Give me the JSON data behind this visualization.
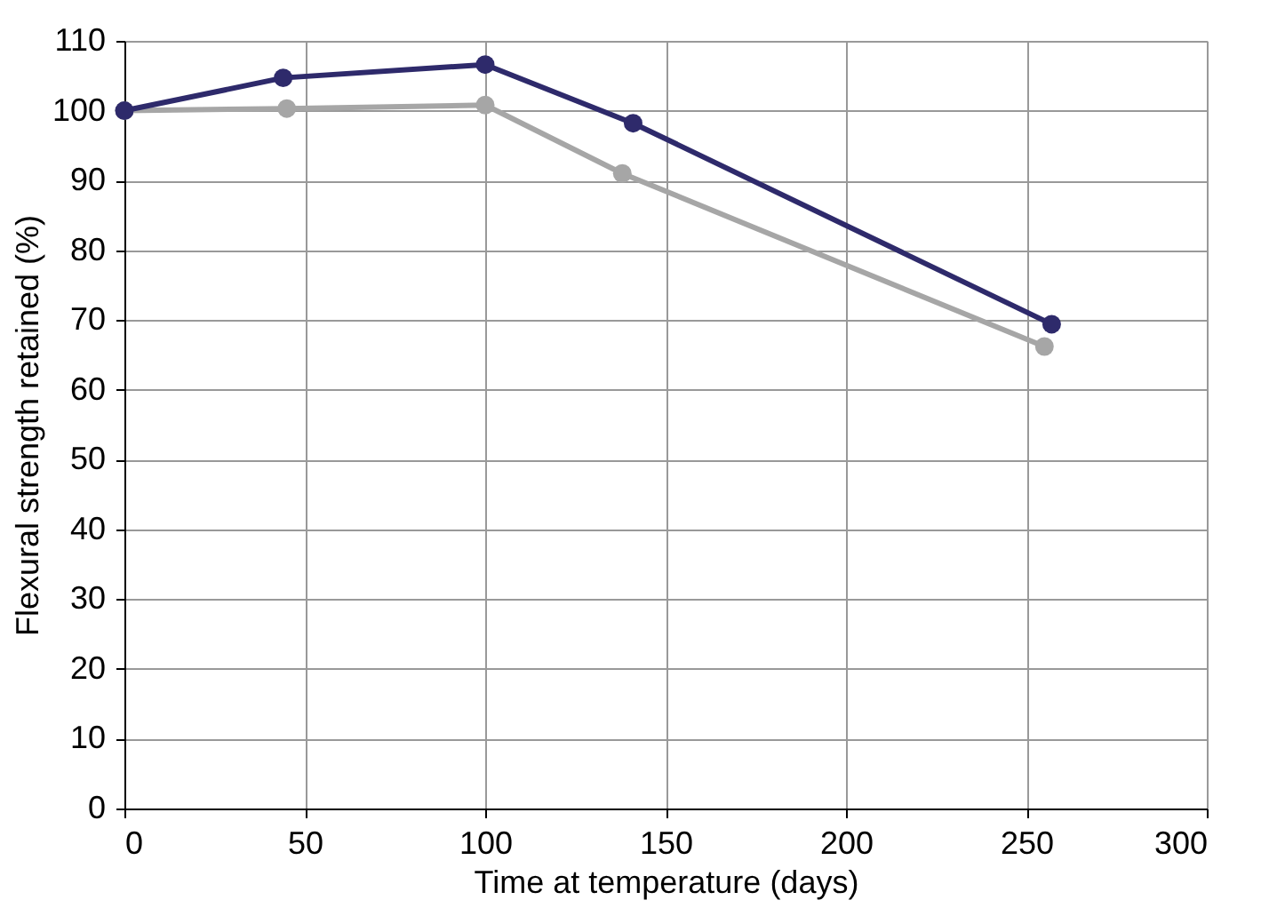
{
  "chart_data": {
    "type": "line",
    "xlabel": "Time at temperature (days)",
    "ylabel": "Flexural strength retained (%)",
    "xlim": [
      0,
      300
    ],
    "xticks": [
      0,
      50,
      100,
      150,
      200,
      250,
      300
    ],
    "ylim": [
      0,
      110
    ],
    "yticks": [
      0,
      10,
      20,
      30,
      40,
      50,
      60,
      70,
      80,
      90,
      100,
      110
    ],
    "grid": true,
    "marker": "circle",
    "line_style": "solid",
    "series": [
      {
        "color": "#a6a6a6",
        "x": [
          0,
          45,
          100,
          138,
          255
        ],
        "values": [
          100,
          100.3,
          100.8,
          91,
          66.2
        ]
      },
      {
        "color": "#2e2a6b",
        "x": [
          0,
          44,
          100,
          141,
          257
        ],
        "values": [
          100,
          104.7,
          106.6,
          98.2,
          69.4
        ]
      }
    ]
  }
}
